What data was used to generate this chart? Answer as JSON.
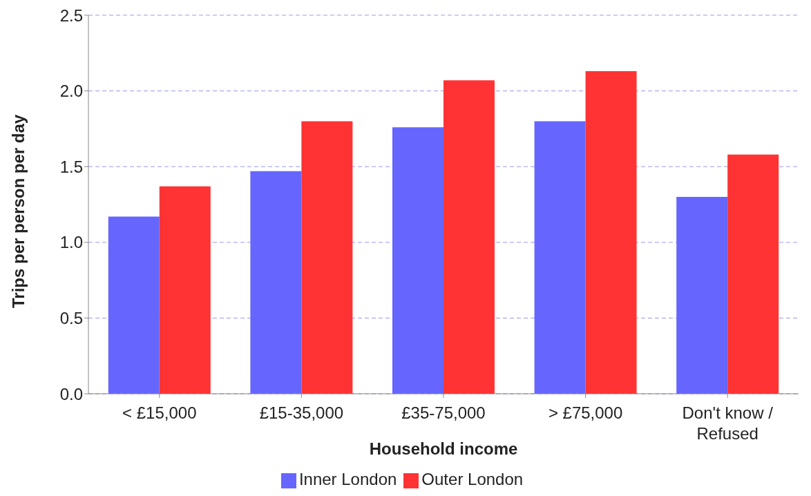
{
  "chart_data": {
    "type": "bar",
    "xlabel": "Household income",
    "ylabel": "Trips per person per day",
    "categories": [
      "< £15,000",
      "£15-35,000",
      "£35-75,000",
      "> £75,000",
      "Don't know / Refused"
    ],
    "series": [
      {
        "name": "Inner London",
        "color": "#6666ff",
        "values": [
          1.17,
          1.47,
          1.76,
          1.8,
          1.3
        ]
      },
      {
        "name": "Outer London",
        "color": "#ff3333",
        "values": [
          1.37,
          1.8,
          2.07,
          2.13,
          1.58
        ]
      }
    ],
    "ylim": [
      0,
      2.5
    ],
    "yticks": [
      {
        "value": 0,
        "label": "0.0"
      },
      {
        "value": 0.5,
        "label": "0.5"
      },
      {
        "value": 1,
        "label": "1.0"
      },
      {
        "value": 1.5,
        "label": "1.5"
      },
      {
        "value": 2,
        "label": "2.0"
      },
      {
        "value": 2.5,
        "label": "2.5"
      }
    ],
    "grid": "y",
    "legend": "bottom"
  }
}
